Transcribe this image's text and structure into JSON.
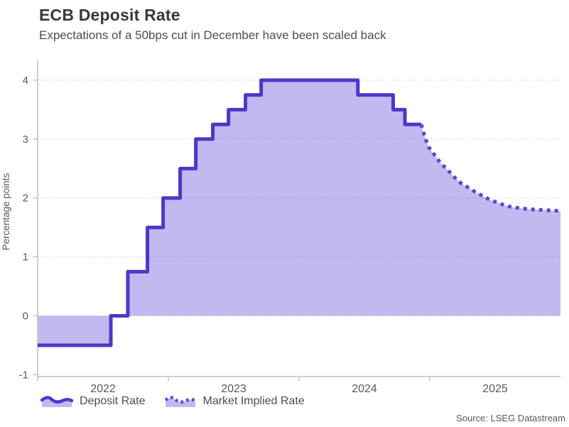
{
  "header": {
    "title": "ECB Deposit Rate",
    "subtitle": "Expectations of a 50bps cut in December have been scaled back"
  },
  "source": "Source: LSEG Datastream",
  "legend": {
    "items": [
      {
        "label": "Deposit Rate"
      },
      {
        "label": "Market Implied Rate"
      }
    ]
  },
  "chart_data": {
    "type": "area",
    "title": "ECB Deposit Rate",
    "xlabel": "",
    "ylabel": "Percentage points",
    "xlim": [
      2022,
      2026
    ],
    "ylim": [
      -1.03,
      4.34
    ],
    "baseline": 0,
    "grid": true,
    "legend_position": "bottom",
    "y_gridlines": [
      0,
      1,
      2,
      3,
      4
    ],
    "y_ticks": [
      {
        "v": -1,
        "label": "-1"
      },
      {
        "v": 0,
        "label": "0"
      },
      {
        "v": 1,
        "label": "1"
      },
      {
        "v": 2,
        "label": "2"
      },
      {
        "v": 3,
        "label": "3"
      },
      {
        "v": 4,
        "label": "4"
      }
    ],
    "x_tick_marks": [
      2022,
      2023,
      2024,
      2025
    ],
    "x_ticks": [
      {
        "t": 2022.5,
        "label": "2022"
      },
      {
        "t": 2023.5,
        "label": "2023"
      },
      {
        "t": 2024.5,
        "label": "2024"
      },
      {
        "t": 2025.5,
        "label": "2025"
      }
    ],
    "series": [
      {
        "name": "Deposit Rate",
        "style": "step-solid",
        "color": "#4a39c8",
        "points": [
          [
            2022.0,
            -0.5
          ],
          [
            2022.56,
            0.0
          ],
          [
            2022.69,
            0.75
          ],
          [
            2022.84,
            1.5
          ],
          [
            2022.96,
            2.0
          ],
          [
            2023.09,
            2.5
          ],
          [
            2023.21,
            3.0
          ],
          [
            2023.34,
            3.25
          ],
          [
            2023.46,
            3.5
          ],
          [
            2023.59,
            3.75
          ],
          [
            2023.71,
            4.0
          ],
          [
            2024.45,
            3.75
          ],
          [
            2024.72,
            3.5
          ],
          [
            2024.81,
            3.25
          ],
          [
            2024.935,
            3.25
          ]
        ]
      },
      {
        "name": "Market Implied Rate",
        "style": "dotted",
        "color": "#5848cb",
        "points": [
          [
            2024.935,
            3.25
          ],
          [
            2024.96,
            3.05
          ],
          [
            2024.99,
            2.87
          ],
          [
            2025.04,
            2.72
          ],
          [
            2025.08,
            2.6
          ],
          [
            2025.14,
            2.47
          ],
          [
            2025.19,
            2.35
          ],
          [
            2025.24,
            2.25
          ],
          [
            2025.3,
            2.17
          ],
          [
            2025.35,
            2.1
          ],
          [
            2025.41,
            2.03
          ],
          [
            2025.46,
            1.97
          ],
          [
            2025.52,
            1.92
          ],
          [
            2025.57,
            1.88
          ],
          [
            2025.62,
            1.85
          ],
          [
            2025.68,
            1.83
          ],
          [
            2025.76,
            1.81
          ],
          [
            2025.84,
            1.8
          ],
          [
            2025.92,
            1.79
          ],
          [
            2026.0,
            1.78
          ]
        ]
      }
    ],
    "appearance": {
      "fill_color": "rgba(91,70,214,0.38)",
      "grid_color": "#cccccc",
      "axis_color": "#c2c2c2",
      "tick_color": "#595959",
      "title_color": "#383838",
      "subtitle_color": "#4d4d4d"
    }
  }
}
